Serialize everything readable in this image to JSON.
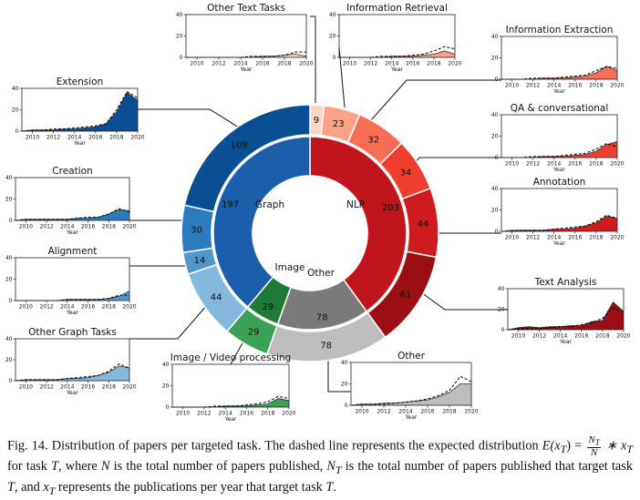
{
  "chart_data": {
    "type": "donut",
    "center_labels": {
      "graph": "Graph",
      "nlp": "NLP",
      "image": "Image",
      "other": "Other"
    },
    "inner_ring": [
      {
        "group": "NLP",
        "value": 203,
        "color": "#c0151d"
      },
      {
        "group": "Other",
        "value": 78,
        "color": "#7a7a7a"
      },
      {
        "group": "Image",
        "value": 29,
        "color": "#1f7a36"
      },
      {
        "group": "Graph",
        "value": 197,
        "color": "#1b5faa"
      }
    ],
    "outer_ring": [
      {
        "name": "Other Text Tasks",
        "group": "NLP",
        "value": 9,
        "color": "#fdd5c4"
      },
      {
        "name": "Information Retrieval",
        "group": "NLP",
        "value": 23,
        "color": "#fca285"
      },
      {
        "name": "Information Extraction",
        "group": "NLP",
        "value": 32,
        "color": "#f96d55"
      },
      {
        "name": "QA & conversational",
        "group": "NLP",
        "value": 34,
        "color": "#ef3d2f"
      },
      {
        "name": "Annotation",
        "group": "NLP",
        "value": 44,
        "color": "#cf1a1e"
      },
      {
        "name": "Text Analysis",
        "group": "NLP",
        "value": 61,
        "color": "#9b0e12"
      },
      {
        "name": "Other",
        "group": "Other",
        "value": 78,
        "color": "#bdbdbd"
      },
      {
        "name": "Image / Video processing",
        "group": "Image",
        "value": 29,
        "color": "#3aa155"
      },
      {
        "name": "Other Graph Tasks",
        "group": "Graph",
        "value": 44,
        "color": "#84b9dd"
      },
      {
        "name": "Alignment",
        "group": "Graph",
        "value": 14,
        "color": "#5396cc"
      },
      {
        "name": "Creation",
        "group": "Graph",
        "value": 30,
        "color": "#2c7bbd"
      },
      {
        "name": "Extension",
        "group": "Graph",
        "value": 109,
        "color": "#0a4f93"
      }
    ],
    "mini_charts": [
      {
        "title": "Other Text Tasks",
        "color": "#fdd5c4",
        "x": [
          2009,
          2010,
          2011,
          2012,
          2013,
          2014,
          2015,
          2016,
          2017,
          2018,
          2019,
          2020
        ],
        "values": [
          0,
          0,
          0,
          0,
          0,
          0,
          0,
          1,
          1,
          2,
          3,
          1
        ],
        "expected": [
          0,
          0,
          0,
          0,
          0,
          0,
          1,
          1,
          1,
          2,
          5,
          5
        ],
        "ylim": [
          0,
          40
        ],
        "yticks": [
          0,
          20,
          40
        ],
        "xticks": [
          2010,
          2012,
          2014,
          2016,
          2018,
          2020
        ],
        "xlabel": "Year"
      },
      {
        "title": "Information Retrieval",
        "color": "#fca285",
        "x": [
          2009,
          2010,
          2011,
          2012,
          2013,
          2014,
          2015,
          2016,
          2017,
          2018,
          2019,
          2020
        ],
        "values": [
          0,
          0,
          0,
          0,
          0,
          1,
          1,
          1,
          2,
          3,
          6,
          3
        ],
        "expected": [
          0,
          0,
          0,
          0,
          1,
          1,
          1,
          2,
          3,
          6,
          10,
          8
        ],
        "ylim": [
          0,
          40
        ],
        "yticks": [
          0,
          20,
          40
        ],
        "xticks": [
          2010,
          2012,
          2014,
          2016,
          2018,
          2020
        ],
        "xlabel": "Year"
      },
      {
        "title": "Information Extraction",
        "color": "#f96d55",
        "x": [
          2009,
          2010,
          2011,
          2012,
          2013,
          2014,
          2015,
          2016,
          2017,
          2018,
          2019,
          2020
        ],
        "values": [
          0,
          0,
          0,
          0,
          1,
          1,
          1,
          2,
          3,
          6,
          12,
          8
        ],
        "expected": [
          0,
          0,
          0,
          1,
          1,
          1,
          2,
          3,
          4,
          8,
          12,
          10
        ],
        "ylim": [
          0,
          40
        ],
        "yticks": [
          0,
          20,
          40
        ],
        "xticks": [
          2010,
          2012,
          2014,
          2016,
          2018,
          2020
        ],
        "xlabel": "Year"
      },
      {
        "title": "QA & conversational",
        "color": "#ef3d2f",
        "x": [
          2009,
          2010,
          2011,
          2012,
          2013,
          2014,
          2015,
          2016,
          2017,
          2018,
          2019,
          2020
        ],
        "values": [
          0,
          0,
          0,
          0,
          1,
          1,
          1,
          2,
          3,
          6,
          12,
          15
        ],
        "expected": [
          0,
          0,
          0,
          1,
          1,
          1,
          2,
          3,
          4,
          8,
          13,
          10
        ],
        "ylim": [
          0,
          40
        ],
        "yticks": [
          0,
          20,
          40
        ],
        "xticks": [
          2010,
          2012,
          2014,
          2016,
          2018,
          2020
        ],
        "xlabel": "Year"
      },
      {
        "title": "Annotation",
        "color": "#cf1a1e",
        "x": [
          2009,
          2010,
          2011,
          2012,
          2013,
          2014,
          2015,
          2016,
          2017,
          2018,
          2019,
          2020
        ],
        "values": [
          0,
          1,
          1,
          1,
          1,
          2,
          2,
          3,
          5,
          8,
          14,
          12
        ],
        "expected": [
          0,
          0,
          1,
          1,
          1,
          2,
          3,
          4,
          5,
          9,
          15,
          12
        ],
        "ylim": [
          0,
          40
        ],
        "yticks": [
          0,
          20,
          40
        ],
        "xticks": [
          2010,
          2012,
          2014,
          2016,
          2018,
          2020
        ],
        "xlabel": "Year"
      },
      {
        "title": "Text Analysis",
        "color": "#9b0e12",
        "x": [
          2009,
          2010,
          2011,
          2012,
          2013,
          2014,
          2015,
          2016,
          2017,
          2018,
          2019,
          2020
        ],
        "values": [
          0,
          2,
          3,
          2,
          3,
          3,
          4,
          4,
          8,
          9,
          27,
          18
        ],
        "expected": [
          0,
          1,
          1,
          1,
          2,
          3,
          3,
          5,
          7,
          11,
          21,
          17
        ],
        "ylim": [
          0,
          40
        ],
        "yticks": [
          0,
          20,
          40
        ],
        "xticks": [
          2010,
          2012,
          2014,
          2016,
          2018,
          2020
        ],
        "xlabel": "Year"
      },
      {
        "title": "Other",
        "color": "#bdbdbd",
        "x": [
          2009,
          2010,
          2011,
          2012,
          2013,
          2014,
          2015,
          2016,
          2017,
          2018,
          2019,
          2020
        ],
        "values": [
          0,
          1,
          1,
          2,
          2,
          3,
          4,
          5,
          8,
          12,
          20,
          20
        ],
        "expected": [
          0,
          1,
          1,
          1,
          2,
          3,
          4,
          6,
          9,
          14,
          27,
          22
        ],
        "ylim": [
          0,
          40
        ],
        "yticks": [
          0,
          20,
          40
        ],
        "xticks": [
          2010,
          2012,
          2014,
          2016,
          2018,
          2020
        ],
        "xlabel": "Year"
      },
      {
        "title": "Image / Video processing",
        "color": "#3aa155",
        "x": [
          2009,
          2010,
          2011,
          2012,
          2013,
          2014,
          2015,
          2016,
          2017,
          2018,
          2019,
          2020
        ],
        "values": [
          0,
          0,
          0,
          0,
          0,
          1,
          1,
          1,
          2,
          3,
          8,
          6
        ],
        "expected": [
          0,
          0,
          0,
          0,
          1,
          1,
          1,
          2,
          3,
          5,
          10,
          8
        ],
        "ylim": [
          0,
          40
        ],
        "yticks": [
          0,
          20,
          40
        ],
        "xticks": [
          2010,
          2012,
          2014,
          2016,
          2018,
          2020
        ],
        "xlabel": "Year"
      },
      {
        "title": "Other Graph Tasks",
        "color": "#84b9dd",
        "x": [
          2009,
          2010,
          2011,
          2012,
          2013,
          2014,
          2015,
          2016,
          2017,
          2018,
          2019,
          2020
        ],
        "values": [
          0,
          1,
          1,
          1,
          1,
          2,
          2,
          3,
          5,
          8,
          14,
          12
        ],
        "expected": [
          0,
          1,
          1,
          1,
          1,
          2,
          3,
          4,
          5,
          9,
          16,
          12
        ],
        "ylim": [
          0,
          40
        ],
        "yticks": [
          0,
          20,
          40
        ],
        "xticks": [
          2010,
          2012,
          2014,
          2016,
          2018,
          2020
        ],
        "xlabel": "Year"
      },
      {
        "title": "Alignment",
        "color": "#5396cc",
        "x": [
          2009,
          2010,
          2011,
          2012,
          2013,
          2014,
          2015,
          2016,
          2017,
          2018,
          2019,
          2020
        ],
        "values": [
          0,
          0,
          0,
          0,
          0,
          1,
          1,
          1,
          1,
          2,
          4,
          9
        ],
        "expected": [
          0,
          0,
          0,
          0,
          0,
          1,
          1,
          1,
          1,
          2,
          5,
          5
        ],
        "ylim": [
          0,
          40
        ],
        "yticks": [
          0,
          20,
          40
        ],
        "xticks": [
          2010,
          2012,
          2014,
          2016,
          2018,
          2020
        ],
        "xlabel": "Year"
      },
      {
        "title": "Creation",
        "color": "#2c7bbd",
        "x": [
          2009,
          2010,
          2011,
          2012,
          2013,
          2014,
          2015,
          2016,
          2017,
          2018,
          2019,
          2020
        ],
        "values": [
          0,
          1,
          1,
          1,
          1,
          1,
          2,
          2,
          3,
          6,
          10,
          9
        ],
        "expected": [
          0,
          1,
          1,
          1,
          1,
          1,
          2,
          3,
          3,
          6,
          11,
          8
        ],
        "ylim": [
          0,
          40
        ],
        "yticks": [
          0,
          20,
          40
        ],
        "xticks": [
          2010,
          2012,
          2014,
          2016,
          2018,
          2020
        ],
        "xlabel": "Year"
      },
      {
        "title": "Extension",
        "color": "#0a4f93",
        "x": [
          2009,
          2010,
          2011,
          2012,
          2013,
          2014,
          2015,
          2016,
          2017,
          2018,
          2019,
          2020
        ],
        "values": [
          0,
          1,
          1,
          1,
          2,
          2,
          3,
          4,
          7,
          18,
          36,
          29
        ],
        "expected": [
          0,
          1,
          1,
          2,
          2,
          3,
          4,
          5,
          7,
          20,
          37,
          31
        ],
        "ylim": [
          0,
          40
        ],
        "yticks": [
          0,
          20,
          40
        ],
        "xticks": [
          2010,
          2012,
          2014,
          2016,
          2018,
          2020
        ],
        "xlabel": "Year"
      }
    ]
  },
  "caption": {
    "fig": "Fig. 14.",
    "text1": " Distribution of papers per targeted task. The dashed line represents the expected distribution ",
    "formula_lhs": "E(x",
    "formula_sub": "T",
    "formula_mid": ") = ",
    "frac_num": "N",
    "frac_num_sub": "T",
    "frac_den": "N",
    "formula_rhs": " ∗ x",
    "formula_rhs_sub": "T",
    "text2": " for task ",
    "t1": "T",
    "text3": ", where ",
    "n1": "N",
    "text4": " is the total number of papers published, ",
    "nt": "N",
    "nt_sub": "T",
    "text5": " is the total number of papers published that target task ",
    "t2": "T",
    "text6": ", and ",
    "xt": "x",
    "xt_sub": "T",
    "text7": " represents the publications per year that target task ",
    "t3": "T",
    "text8": "."
  }
}
